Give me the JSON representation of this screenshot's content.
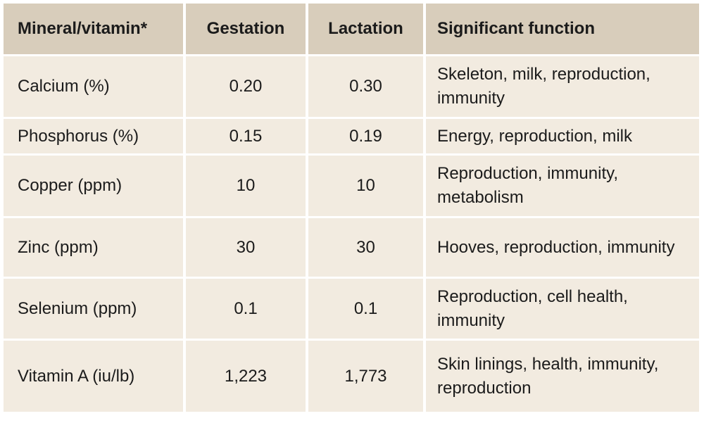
{
  "table": {
    "headers": [
      "Mineral/vitamin*",
      "Gestation",
      "Lactation",
      "Significant function"
    ],
    "rows": [
      {
        "nutrient": "Calcium (%)",
        "gestation": "0.20",
        "lactation": "0.30",
        "function": "Skeleton, milk, reproduction, immunity"
      },
      {
        "nutrient": "Phosphorus (%)",
        "gestation": "0.15",
        "lactation": "0.19",
        "function": "Energy, reproduction, milk"
      },
      {
        "nutrient": "Copper (ppm)",
        "gestation": "10",
        "lactation": "10",
        "function": "Reproduction, immunity, metabolism"
      },
      {
        "nutrient": "Zinc (ppm)",
        "gestation": "30",
        "lactation": "30",
        "function": "Hooves, reproduction, immunity"
      },
      {
        "nutrient": "Selenium (ppm)",
        "gestation": "0.1",
        "lactation": "0.1",
        "function": "Reproduction, cell health, immunity"
      },
      {
        "nutrient": "Vitamin A (iu/lb)",
        "gestation": "1,223",
        "lactation": "1,773",
        "function": "Skin linings, health, immunity, reproduction"
      }
    ]
  },
  "colors": {
    "header_bg": "#d8cdbb",
    "body_bg": "#f2ebe0",
    "gridline": "#ffffff",
    "text": "#1b1b1b"
  }
}
